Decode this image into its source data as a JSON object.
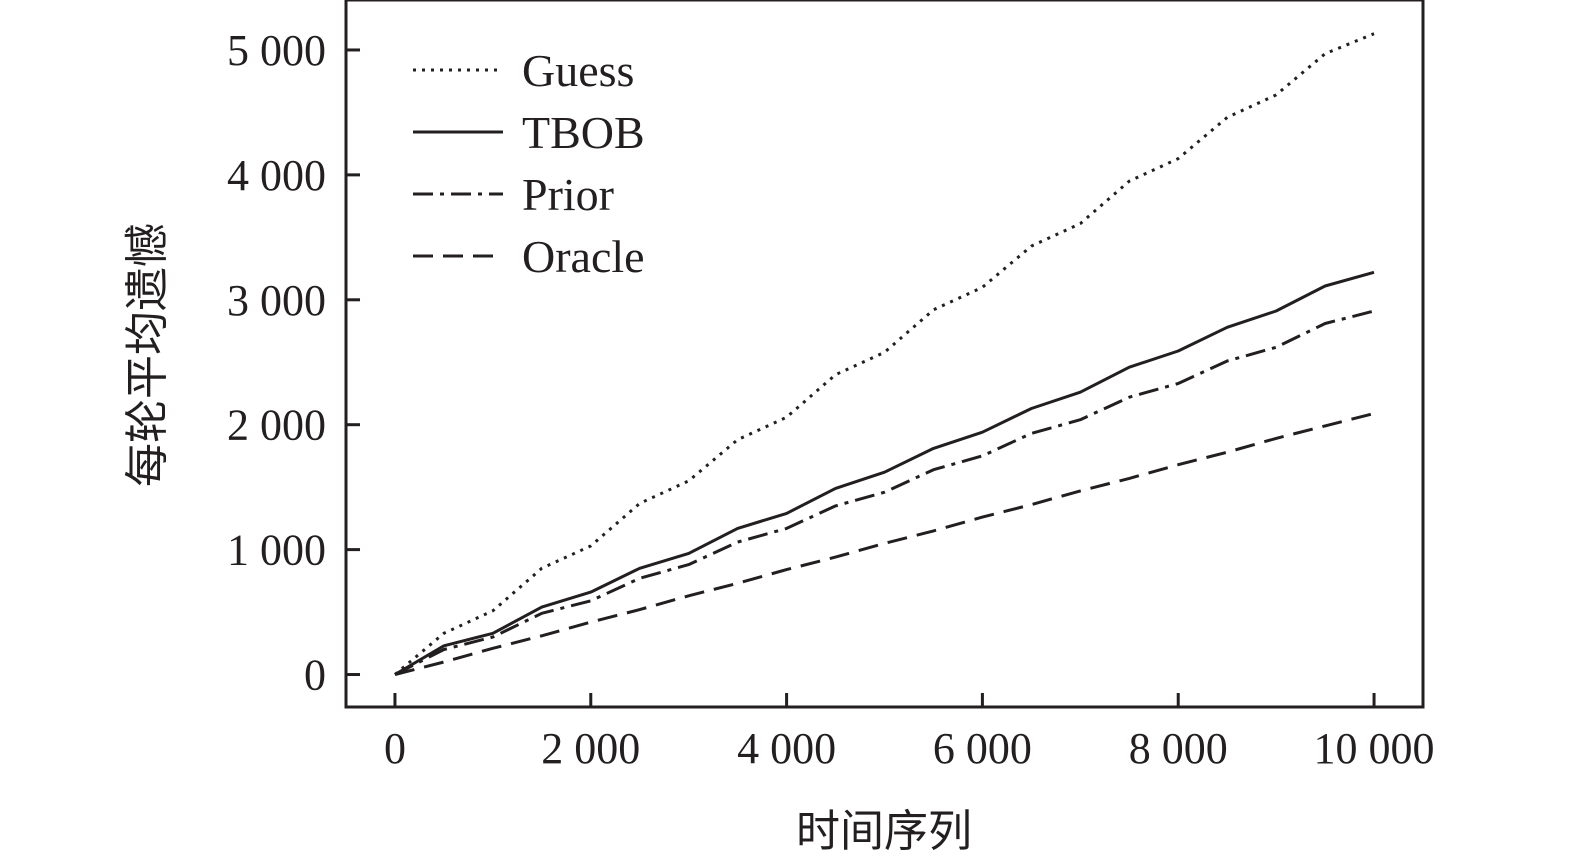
{
  "chart_data": {
    "type": "line",
    "title": "",
    "xlabel": "时间序列",
    "ylabel": "每轮平均遗憾",
    "xlim": [
      -500,
      10500
    ],
    "ylim": [
      -260,
      5400
    ],
    "xticks": [
      0,
      2000,
      4000,
      6000,
      8000,
      10000
    ],
    "xtick_labels": [
      "0",
      "2 000",
      "4 000",
      "6 000",
      "8 000",
      "10 000"
    ],
    "yticks": [
      0,
      1000,
      2000,
      3000,
      4000,
      5000
    ],
    "ytick_labels": [
      "0",
      "1 000",
      "2 000",
      "3 000",
      "4 000",
      "5 000"
    ],
    "grid": false,
    "legend_position": "top-left",
    "x": [
      0,
      500,
      1000,
      1500,
      2000,
      2500,
      3000,
      3500,
      4000,
      4500,
      5000,
      5500,
      6000,
      6500,
      7000,
      7500,
      8000,
      8500,
      9000,
      9500,
      10000
    ],
    "series": [
      {
        "name": "Guess",
        "style": "dotted",
        "values": [
          0,
          330,
          510,
          850,
          1030,
          1370,
          1550,
          1880,
          2060,
          2400,
          2580,
          2920,
          3100,
          3430,
          3610,
          3950,
          4130,
          4460,
          4640,
          4970,
          5130
        ]
      },
      {
        "name": "TBOB",
        "style": "solid",
        "values": [
          0,
          230,
          330,
          540,
          660,
          850,
          970,
          1170,
          1290,
          1490,
          1620,
          1810,
          1940,
          2130,
          2260,
          2460,
          2590,
          2780,
          2910,
          3110,
          3220
        ]
      },
      {
        "name": "Prior",
        "style": "dash-dot",
        "values": [
          0,
          200,
          300,
          490,
          590,
          770,
          880,
          1060,
          1170,
          1350,
          1460,
          1640,
          1750,
          1930,
          2040,
          2220,
          2330,
          2510,
          2620,
          2810,
          2910
        ]
      },
      {
        "name": "Oracle",
        "style": "dashed",
        "values": [
          0,
          100,
          210,
          310,
          420,
          520,
          630,
          730,
          840,
          940,
          1050,
          1150,
          1260,
          1360,
          1470,
          1570,
          1680,
          1780,
          1890,
          1990,
          2090
        ]
      }
    ],
    "colors": {
      "line": "#231f20",
      "frame": "#231f20",
      "background": "#ffffff"
    }
  }
}
